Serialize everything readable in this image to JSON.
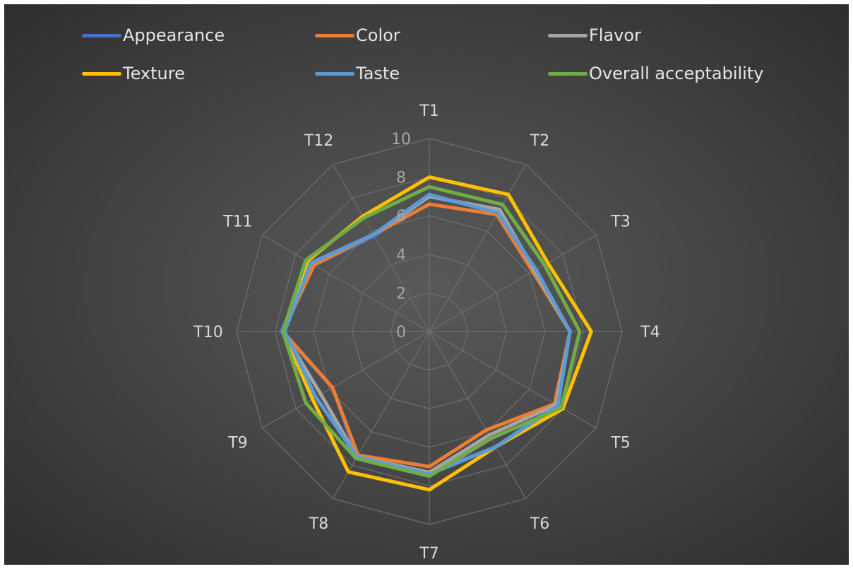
{
  "chart_data": {
    "type": "radar",
    "categories": [
      "T1",
      "T2",
      "T3",
      "T4",
      "T5",
      "T6",
      "T7",
      "T8",
      "T9",
      "T10",
      "T11",
      "T12"
    ],
    "rlim": [
      0,
      10
    ],
    "ticks": [
      "0",
      "2",
      "4",
      "6",
      "8",
      "10"
    ],
    "grid": true,
    "legend_position": "top",
    "series": [
      {
        "name": "Appearance",
        "color": "#4472c4",
        "values": [
          7.0,
          7.2,
          6.3,
          7.3,
          7.6,
          6.9,
          7.3,
          7.5,
          5.8,
          7.7,
          6.9,
          5.7
        ]
      },
      {
        "name": "Color",
        "color": "#ed7d31",
        "values": [
          6.6,
          7.0,
          6.2,
          7.3,
          7.5,
          5.9,
          7.0,
          7.4,
          5.8,
          7.6,
          6.9,
          5.8
        ]
      },
      {
        "name": "Flavor",
        "color": "#a5a5a5",
        "values": [
          7.0,
          7.3,
          6.3,
          7.3,
          7.6,
          6.2,
          7.3,
          7.5,
          6.5,
          7.6,
          7.1,
          5.8
        ]
      },
      {
        "name": "Texture",
        "color": "#ffc000",
        "values": [
          8.0,
          8.2,
          7.1,
          8.4,
          8.0,
          6.9,
          8.2,
          8.4,
          7.0,
          7.6,
          7.3,
          6.9
        ]
      },
      {
        "name": "Taste",
        "color": "#5b9bd5",
        "values": [
          7.1,
          7.1,
          6.4,
          7.3,
          7.7,
          6.9,
          7.4,
          7.5,
          6.8,
          7.5,
          7.1,
          5.8
        ]
      },
      {
        "name": "Overall acceptability",
        "color": "#70ad47",
        "values": [
          7.5,
          7.6,
          6.9,
          7.8,
          7.9,
          6.4,
          7.5,
          7.6,
          7.4,
          7.6,
          7.4,
          6.8
        ]
      }
    ]
  }
}
